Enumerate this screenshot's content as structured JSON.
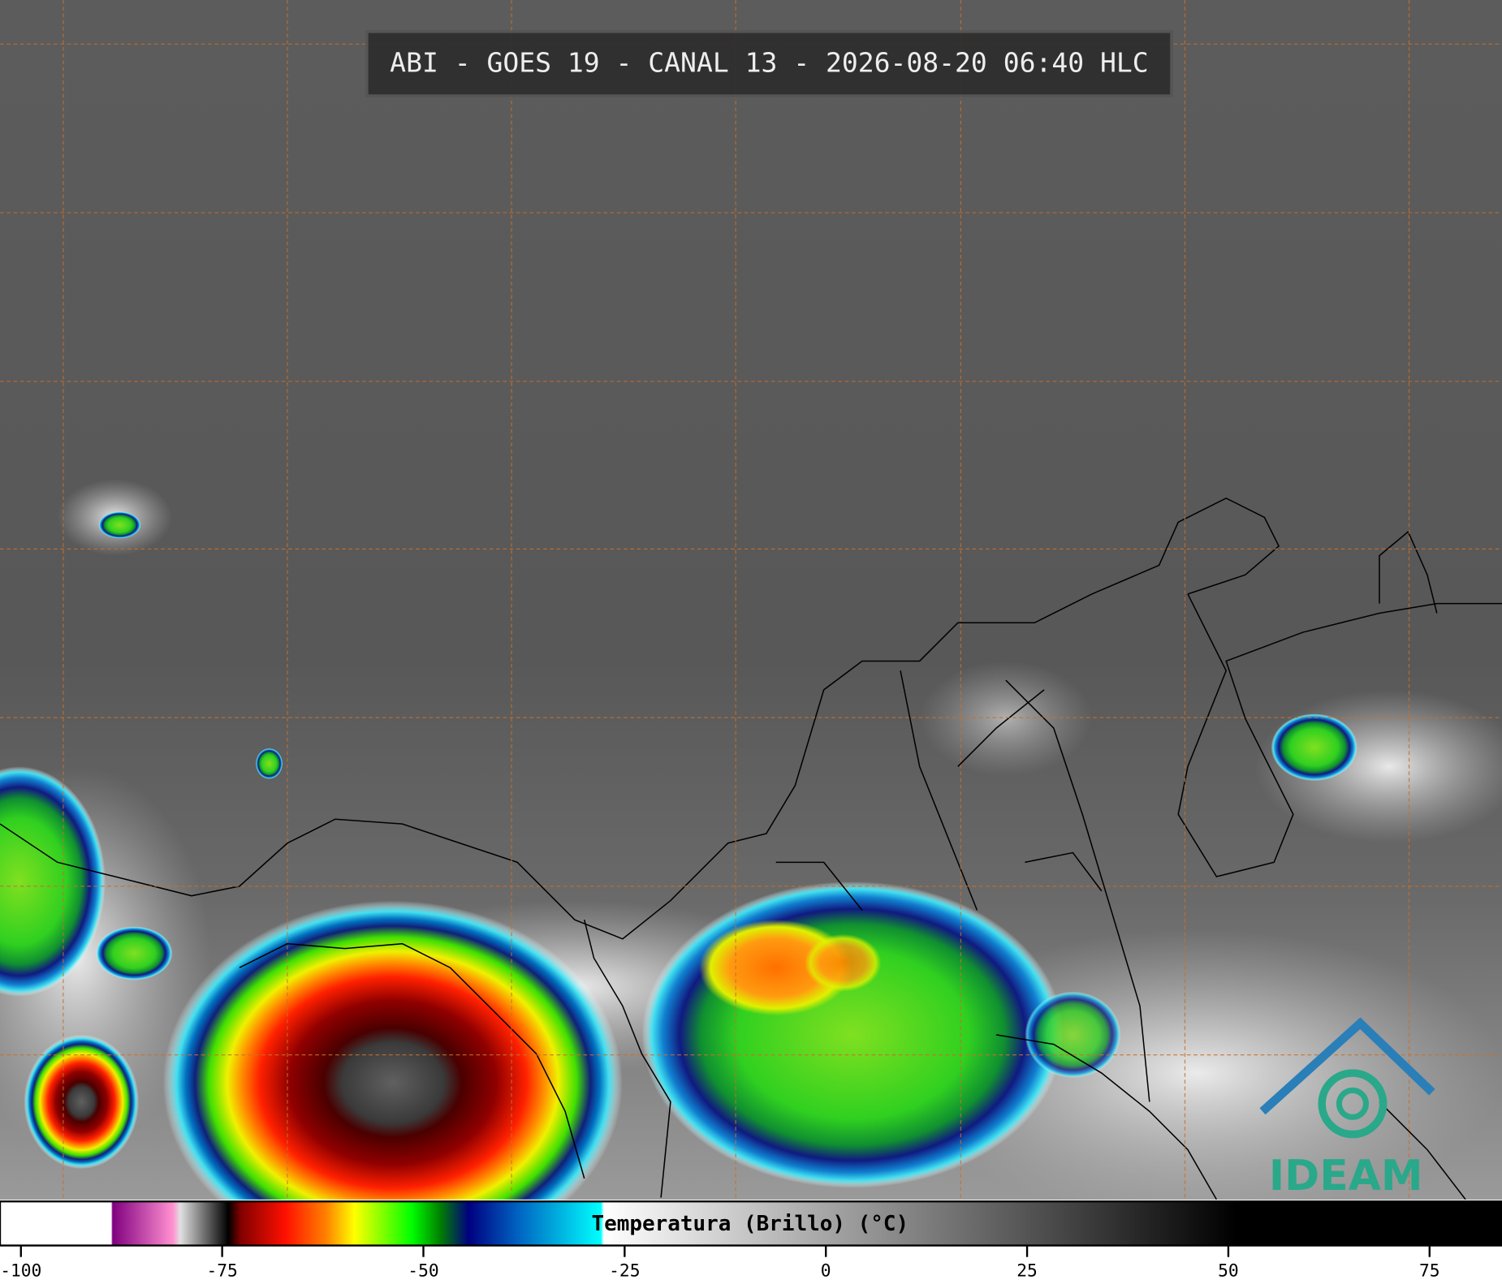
{
  "title": "ABI - GOES 19 - CANAL 13 - 2026-08-20 06:40 HLC",
  "colorbar": {
    "label": "Temperatura (Brillo) (°C)",
    "lim": [
      -102.6,
      84.0
    ],
    "ticks": [
      -100,
      -75,
      -50,
      -25,
      0,
      25,
      50,
      75
    ]
  },
  "logo": "IDEAM"
}
